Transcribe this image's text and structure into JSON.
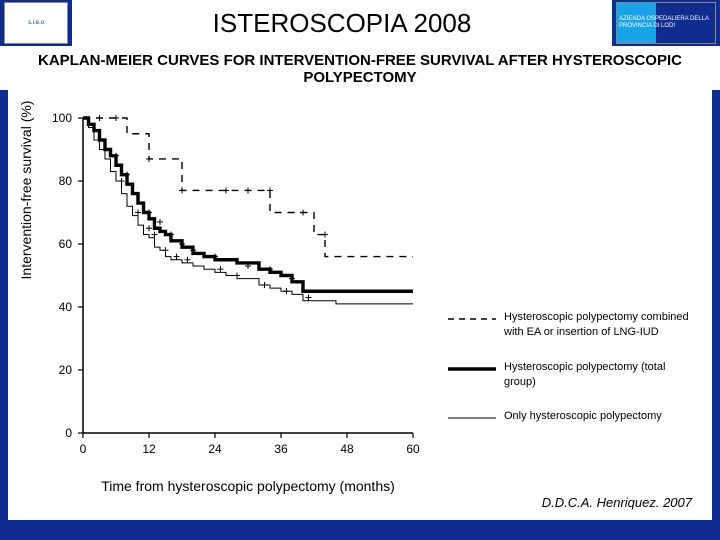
{
  "header": {
    "title": "ISTEROSCOPIA 2008",
    "logo_left": "s.i.e.o",
    "logo_right": "AZIENDA OSPEDALIERA DELLA PROVINCIA DI LODI"
  },
  "subtitle": "KAPLAN-MEIER CURVES FOR INTERVENTION-FREE SURVIVAL AFTER HYSTEROSCOPIC POLYPECTOMY",
  "chart": {
    "type": "survival-step",
    "x_label": "Time from hysteroscopic polypectomy (months)",
    "y_label": "Intervention-free survival (%)",
    "xlim": [
      0,
      60
    ],
    "ylim": [
      0,
      100
    ],
    "xticks": [
      0,
      12,
      24,
      36,
      48,
      60
    ],
    "yticks": [
      0,
      20,
      40,
      60,
      80,
      100
    ],
    "background_color": "#ffffff",
    "axis_color": "#000000",
    "tick_fontsize": 12,
    "label_fontsize": 14,
    "series": [
      {
        "id": "combined",
        "label": "Hysteroscopic polypectomy combined with EA or insertion of LNG-IUD",
        "line_style": "dashed",
        "line_width": 1.4,
        "color": "#000000",
        "points": [
          [
            0,
            100
          ],
          [
            2,
            100
          ],
          [
            8,
            95
          ],
          [
            12,
            87
          ],
          [
            13,
            87
          ],
          [
            18,
            77
          ],
          [
            24,
            77
          ],
          [
            30,
            77
          ],
          [
            34,
            70
          ],
          [
            36,
            70
          ],
          [
            42,
            63
          ],
          [
            44,
            56
          ],
          [
            48,
            56
          ],
          [
            58,
            56
          ],
          [
            60,
            56
          ]
        ],
        "censor_marks": [
          [
            3,
            100
          ],
          [
            6,
            100
          ],
          [
            12,
            87
          ],
          [
            18,
            77
          ],
          [
            26,
            77
          ],
          [
            30,
            77
          ],
          [
            34,
            77
          ],
          [
            40,
            70
          ],
          [
            44,
            63
          ]
        ]
      },
      {
        "id": "total",
        "label": "Hysteroscopic polypectomy (total group)",
        "line_style": "solid",
        "line_width": 3.4,
        "color": "#000000",
        "points": [
          [
            0,
            100
          ],
          [
            1,
            98
          ],
          [
            2,
            96
          ],
          [
            3,
            93
          ],
          [
            4,
            90
          ],
          [
            5,
            88
          ],
          [
            6,
            85
          ],
          [
            7,
            82
          ],
          [
            8,
            79
          ],
          [
            9,
            76
          ],
          [
            10,
            73
          ],
          [
            11,
            70
          ],
          [
            12,
            68
          ],
          [
            13,
            65
          ],
          [
            14,
            64
          ],
          [
            15,
            63
          ],
          [
            16,
            61
          ],
          [
            18,
            59
          ],
          [
            20,
            57
          ],
          [
            22,
            56
          ],
          [
            24,
            55
          ],
          [
            28,
            54
          ],
          [
            32,
            52
          ],
          [
            34,
            51
          ],
          [
            36,
            50
          ],
          [
            38,
            48
          ],
          [
            40,
            45
          ],
          [
            42,
            45
          ],
          [
            46,
            45
          ],
          [
            50,
            45
          ],
          [
            55,
            45
          ],
          [
            60,
            45
          ]
        ],
        "censor_marks": [
          [
            6,
            88
          ],
          [
            8,
            82
          ],
          [
            12,
            70
          ],
          [
            14,
            67
          ],
          [
            16,
            63
          ],
          [
            18,
            60
          ],
          [
            20,
            58
          ],
          [
            24,
            56
          ],
          [
            30,
            53
          ],
          [
            34,
            52
          ],
          [
            38,
            49
          ]
        ]
      },
      {
        "id": "only",
        "label": "Only hysteroscopic polypectomy",
        "line_style": "solid",
        "line_width": 1,
        "color": "#000000",
        "points": [
          [
            0,
            100
          ],
          [
            1,
            97
          ],
          [
            2,
            93
          ],
          [
            3,
            90
          ],
          [
            4,
            87
          ],
          [
            5,
            83
          ],
          [
            6,
            80
          ],
          [
            7,
            76
          ],
          [
            8,
            72
          ],
          [
            9,
            69
          ],
          [
            10,
            66
          ],
          [
            11,
            63
          ],
          [
            12,
            62
          ],
          [
            13,
            59
          ],
          [
            14,
            58
          ],
          [
            15,
            56
          ],
          [
            16,
            55
          ],
          [
            18,
            54
          ],
          [
            20,
            53
          ],
          [
            22,
            52
          ],
          [
            24,
            51
          ],
          [
            26,
            50
          ],
          [
            28,
            49
          ],
          [
            30,
            49
          ],
          [
            32,
            47
          ],
          [
            34,
            46
          ],
          [
            36,
            45
          ],
          [
            38,
            44
          ],
          [
            40,
            42
          ],
          [
            42,
            42
          ],
          [
            46,
            41
          ],
          [
            50,
            41
          ],
          [
            55,
            41
          ],
          [
            60,
            41
          ]
        ],
        "censor_marks": [
          [
            4,
            90
          ],
          [
            7,
            80
          ],
          [
            10,
            70
          ],
          [
            12,
            65
          ],
          [
            13,
            63
          ],
          [
            15,
            58
          ],
          [
            17,
            56
          ],
          [
            19,
            55
          ],
          [
            25,
            52
          ],
          [
            28,
            50
          ],
          [
            33,
            47
          ],
          [
            37,
            45
          ],
          [
            41,
            43
          ]
        ]
      }
    ],
    "legend_position": "right-middle"
  },
  "citation": "D.D.C.A. Henriquez. 2007"
}
